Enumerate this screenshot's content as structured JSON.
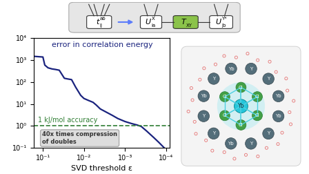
{
  "chart_data": {
    "type": "line",
    "title": "error in correlation energy",
    "x_label": "SVD threshold ε",
    "log": true,
    "x": [
      0.165,
      0.1,
      0.09,
      0.075,
      0.06,
      0.05,
      0.04,
      0.03,
      0.025,
      0.02,
      0.016,
      0.014,
      0.012,
      0.01,
      0.008,
      0.006,
      0.005,
      0.004,
      0.003,
      0.002,
      0.0015,
      0.001,
      0.0007,
      0.0005,
      0.0004,
      0.0003,
      0.0002,
      0.00015,
      0.00011
    ],
    "values": [
      1500,
      1400,
      600,
      450,
      400,
      380,
      350,
      150,
      140,
      130,
      60,
      40,
      25,
      18,
      15,
      12,
      9,
      6,
      4.5,
      3,
      2.2,
      1.6,
      1.3,
      1.1,
      0.95,
      0.6,
      0.3,
      0.18,
      0.1
    ],
    "color": "#1a237e",
    "xlim": [
      0.165,
      8e-05
    ],
    "xticks": [
      {
        "value": 0.1,
        "label": "10⁻¹"
      },
      {
        "value": 0.01,
        "label": "10⁻²"
      },
      {
        "value": 0.001,
        "label": "10⁻³"
      },
      {
        "value": 0.0001,
        "label": "10⁻⁴"
      }
    ],
    "ylim": [
      0.1,
      10000
    ],
    "yticks": [
      {
        "value": 0.1,
        "label": "10⁻¹"
      },
      {
        "value": 1,
        "label": "10⁰"
      },
      {
        "value": 10,
        "label": "10¹"
      },
      {
        "value": 100,
        "label": "10²"
      },
      {
        "value": 1000,
        "label": "10³"
      },
      {
        "value": 10000,
        "label": "10⁴"
      }
    ],
    "reference_line": {
      "value": 1,
      "label": "1 kJ/mol accuracy",
      "color": "#2e7d32"
    },
    "annotation": "40x times compression\nof doubles"
  },
  "diagram": {
    "tensor": {
      "label": "t",
      "sub": "ij",
      "sup": "ab"
    },
    "factors": [
      {
        "label": "U",
        "sub": "ia",
        "sup": "X"
      },
      {
        "label": "T",
        "sub": "XY"
      },
      {
        "label": "U",
        "sub": "jb",
        "sup": "Y*"
      }
    ]
  },
  "cluster": {
    "center": "Yb",
    "ligands": [
      "Cl",
      "Cl",
      "Cl",
      "Cl",
      "Cl",
      "Cl"
    ],
    "shell": [
      "Yb",
      "Y",
      "Y",
      "Yb",
      "Y",
      "Yb",
      "Y",
      "Y",
      "Yb",
      "Y",
      "Y",
      "Yb"
    ]
  }
}
